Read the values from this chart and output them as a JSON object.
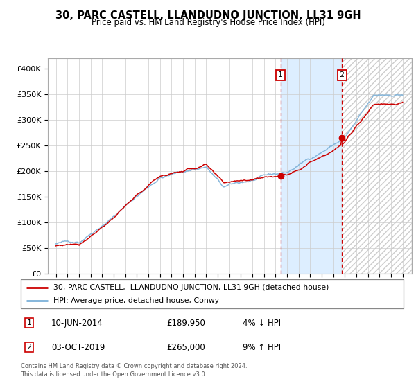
{
  "title": "30, PARC CASTELL, LLANDUDNO JUNCTION, LL31 9GH",
  "subtitle": "Price paid vs. HM Land Registry's House Price Index (HPI)",
  "legend_line1": "30, PARC CASTELL,  LLANDUDNO JUNCTION, LL31 9GH (detached house)",
  "legend_line2": "HPI: Average price, detached house, Conwy",
  "transaction1_date": "10-JUN-2014",
  "transaction1_price": "£189,950",
  "transaction1_hpi": "4% ↓ HPI",
  "transaction2_date": "03-OCT-2019",
  "transaction2_price": "£265,000",
  "transaction2_hpi": "9% ↑ HPI",
  "footnote1": "Contains HM Land Registry data © Crown copyright and database right 2024.",
  "footnote2": "This data is licensed under the Open Government Licence v3.0.",
  "hpi_color": "#7ab0d8",
  "price_color": "#cc0000",
  "background_color": "#ffffff",
  "grid_color": "#cccccc",
  "shaded_region_color": "#ddeeff",
  "ylim": [
    0,
    420000
  ],
  "yticks": [
    0,
    50000,
    100000,
    150000,
    200000,
    250000,
    300000,
    350000,
    400000
  ],
  "ytick_labels": [
    "£0",
    "£50K",
    "£100K",
    "£150K",
    "£200K",
    "£250K",
    "£300K",
    "£350K",
    "£400K"
  ],
  "xstart_year": 1995,
  "xend_year": 2025,
  "transaction1_year": 2014.44,
  "transaction2_year": 2019.75
}
